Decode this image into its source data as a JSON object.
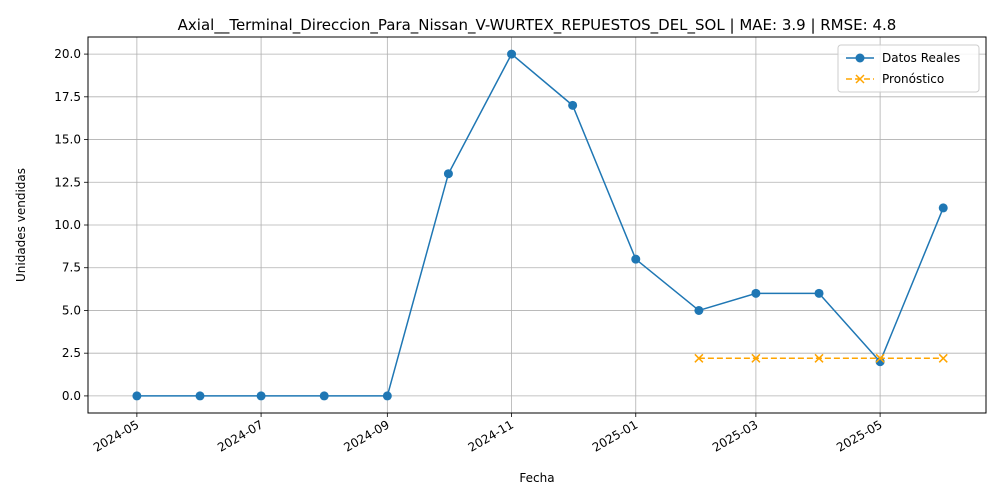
{
  "chart_data": {
    "type": "line",
    "title": "Axial__Terminal_Direccion_Para_Nissan_V-WURTEX_REPUESTOS_DEL_SOL | MAE: 3.9 | RMSE: 4.8",
    "xlabel": "Fecha",
    "ylabel": "Unidades vendidas",
    "x_ticks": [
      "2024-05",
      "2024-07",
      "2024-09",
      "2024-11",
      "2025-01",
      "2025-03",
      "2025-05"
    ],
    "y_ticks": [
      "0.0",
      "2.5",
      "5.0",
      "7.5",
      "10.0",
      "12.5",
      "15.0",
      "17.5",
      "20.0"
    ],
    "ylim": [
      -1,
      21
    ],
    "xlim": [
      "2024-04-07",
      "2025-06-22"
    ],
    "grid": true,
    "legend_position": "top-right",
    "series": [
      {
        "name": "Datos Reales",
        "color": "#1f77b4",
        "marker": "circle",
        "linestyle": "solid",
        "x": [
          "2024-05-01",
          "2024-06-01",
          "2024-07-01",
          "2024-08-01",
          "2024-09-01",
          "2024-10-01",
          "2024-11-01",
          "2024-12-01",
          "2025-01-01",
          "2025-02-01",
          "2025-03-01",
          "2025-04-01",
          "2025-05-01",
          "2025-06-01"
        ],
        "y": [
          0,
          0,
          0,
          0,
          0,
          13,
          20,
          17,
          8,
          5,
          6,
          6,
          2,
          11
        ]
      },
      {
        "name": "Pronóstico",
        "color": "#ffa500",
        "marker": "x",
        "linestyle": "dashed",
        "x": [
          "2025-02-01",
          "2025-03-01",
          "2025-04-01",
          "2025-05-01",
          "2025-06-01"
        ],
        "y": [
          2.2,
          2.2,
          2.2,
          2.2,
          2.2
        ]
      }
    ]
  }
}
